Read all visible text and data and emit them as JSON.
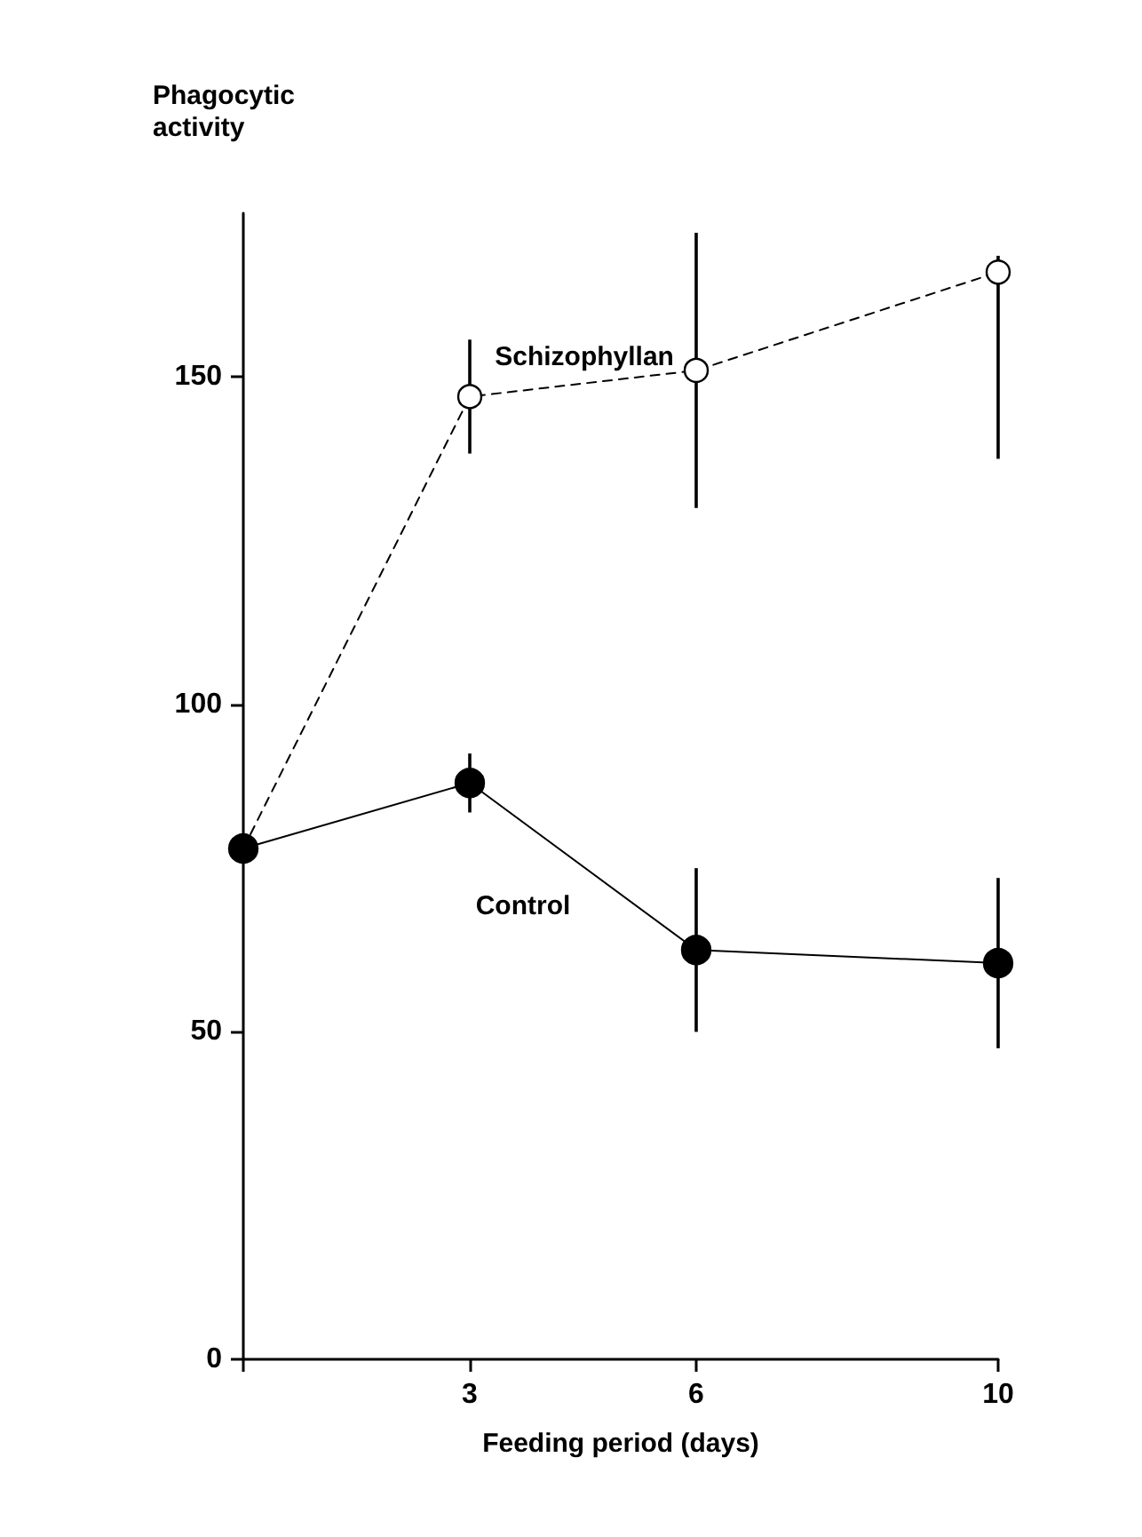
{
  "chart_data": {
    "type": "line",
    "xlabel": "Feeding period (days)",
    "ylabel": "Phagocytic activity",
    "xlim": [
      0,
      10
    ],
    "xticks": [
      {
        "value": 0,
        "label": null
      },
      3,
      6,
      10
    ],
    "ylim": [
      0,
      175
    ],
    "yticks": [
      0,
      50,
      100,
      150
    ],
    "grid": false,
    "legend": false,
    "marker": "circle",
    "series": [
      {
        "name": "Schizophyllan",
        "color": "#000000",
        "line_style": "dashed",
        "x": [
          0,
          3,
          6,
          10
        ],
        "values": [
          78,
          147,
          151,
          166
        ],
        "errors": [
          null,
          8.7,
          21,
          [
            137.5,
            168.5
          ]
        ]
      },
      {
        "name": "Control",
        "color": "#000000",
        "line_style": "solid",
        "x": [
          0,
          3,
          6,
          10
        ],
        "values": [
          78,
          88,
          62.5,
          60.5
        ],
        "errors": [
          null,
          4.5,
          12.5,
          13
        ]
      }
    ]
  }
}
